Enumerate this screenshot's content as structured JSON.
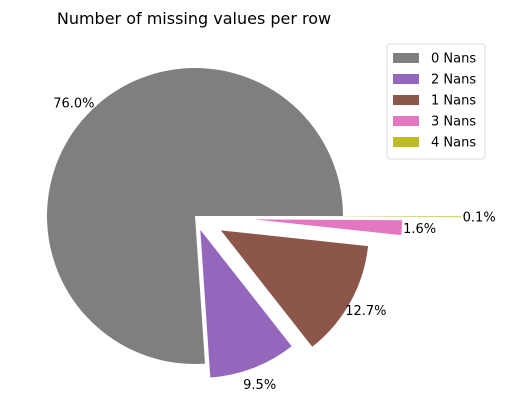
{
  "chart_data": {
    "type": "pie",
    "title": "Number of missing values per row",
    "slices": [
      {
        "label": "0 Nans",
        "value": 76.0,
        "pct_label": "76.0%",
        "color": "#7f7f7f",
        "explode": 0.0
      },
      {
        "label": "2 Nans",
        "value": 9.5,
        "pct_label": "9.5%",
        "color": "#9467bd",
        "explode": 0.1
      },
      {
        "label": "1 Nans",
        "value": 12.7,
        "pct_label": "12.7%",
        "color": "#8c564b",
        "explode": 0.2
      },
      {
        "label": "3 Nans",
        "value": 1.6,
        "pct_label": "1.6%",
        "color": "#e377c2",
        "explode": 0.4
      },
      {
        "label": "4 Nans",
        "value": 0.1,
        "pct_label": "0.1%",
        "color": "#bcbd22",
        "explode": 0.8
      }
    ],
    "start_angle_deg": 0,
    "direction": "counterclockwise",
    "legend_position": "upper-right"
  }
}
